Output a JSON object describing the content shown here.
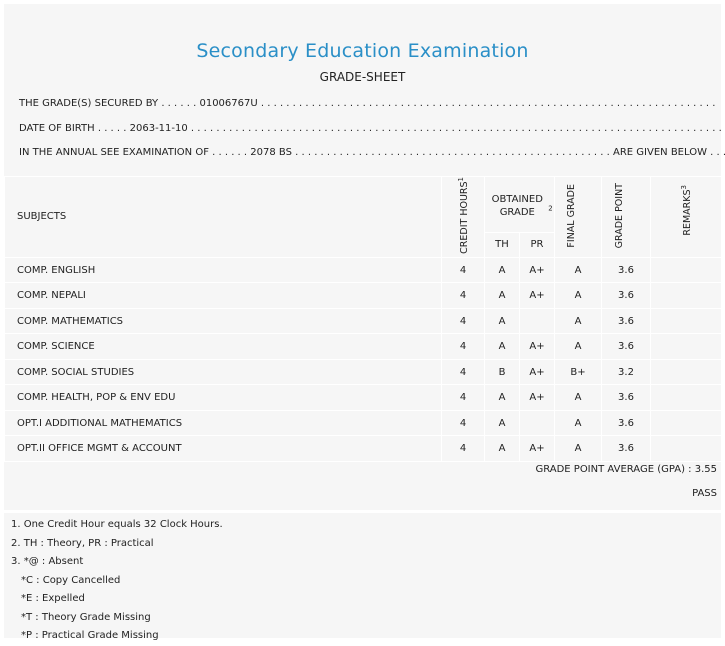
{
  "header": {
    "title": "Secondary Education Examination",
    "subtitle": "GRADE-SHEET"
  },
  "info": {
    "secured_by_label": "THE GRADE(S) SECURED BY",
    "secured_by_value": "01006767U",
    "dob_label": "DATE OF BIRTH",
    "dob_value": "2063-11-10",
    "exam_label": "IN THE ANNUAL SEE EXAMINATION OF",
    "exam_value": "2078 BS",
    "exam_suffix": "ARE GIVEN BELOW"
  },
  "table": {
    "headers": {
      "subjects": "SUBJECTS",
      "credit_hours": "CREDIT HOURS",
      "credit_hours_sup": "1",
      "obtained_grade": "OBTAINED GRADE",
      "obtained_grade_sup": "2",
      "th": "TH",
      "pr": "PR",
      "final_grade": "FINAL GRADE",
      "grade_point": "GRADE POINT",
      "remarks": "REMARKS",
      "remarks_sup": "3"
    },
    "rows": [
      {
        "subject": "COMP. ENGLISH",
        "credit": "4",
        "th": "A",
        "pr": "A+",
        "final": "A",
        "gp": "3.6",
        "remarks": ""
      },
      {
        "subject": "COMP. NEPALI",
        "credit": "4",
        "th": "A",
        "pr": "A+",
        "final": "A",
        "gp": "3.6",
        "remarks": ""
      },
      {
        "subject": "COMP. MATHEMATICS",
        "credit": "4",
        "th": "A",
        "pr": "",
        "final": "A",
        "gp": "3.6",
        "remarks": ""
      },
      {
        "subject": "COMP. SCIENCE",
        "credit": "4",
        "th": "A",
        "pr": "A+",
        "final": "A",
        "gp": "3.6",
        "remarks": ""
      },
      {
        "subject": "COMP. SOCIAL STUDIES",
        "credit": "4",
        "th": "B",
        "pr": "A+",
        "final": "B+",
        "gp": "3.2",
        "remarks": ""
      },
      {
        "subject": "COMP. HEALTH, POP & ENV EDU",
        "credit": "4",
        "th": "A",
        "pr": "A+",
        "final": "A",
        "gp": "3.6",
        "remarks": ""
      },
      {
        "subject": "OPT.I ADDITIONAL MATHEMATICS",
        "credit": "4",
        "th": "A",
        "pr": "",
        "final": "A",
        "gp": "3.6",
        "remarks": ""
      },
      {
        "subject": "OPT.II OFFICE MGMT & ACCOUNT",
        "credit": "4",
        "th": "A",
        "pr": "A+",
        "final": "A",
        "gp": "3.6",
        "remarks": ""
      }
    ]
  },
  "summary": {
    "gpa_label": "GRADE POINT AVERAGE (GPA) :",
    "gpa_value": "3.55",
    "result": "PASS"
  },
  "notes": [
    "1. One Credit Hour equals 32 Clock Hours.",
    "2. TH : Theory, PR : Practical",
    "3. *@ : Absent",
    "*C : Copy Cancelled",
    "*E : Expelled",
    "*T : Theory Grade Missing",
    "*P : Practical Grade Missing"
  ],
  "colors": {
    "title": "#2a8fc7",
    "background": "#f6f6f6"
  }
}
